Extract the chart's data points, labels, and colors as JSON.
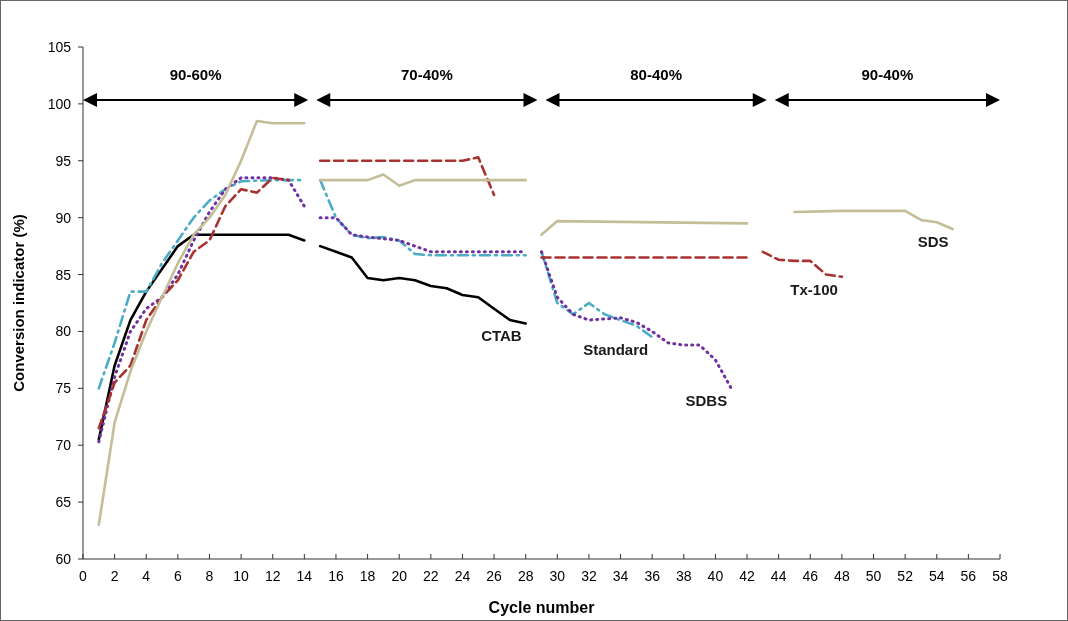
{
  "chart_data": {
    "type": "line",
    "xlabel": "Cycle number",
    "ylabel": "Conversion indicator  (%)",
    "xlim": [
      0,
      58
    ],
    "xticks": [
      0,
      2,
      4,
      6,
      8,
      10,
      12,
      14,
      16,
      18,
      20,
      22,
      24,
      26,
      28,
      30,
      32,
      34,
      36,
      38,
      40,
      42,
      44,
      46,
      48,
      50,
      52,
      54,
      56,
      58
    ],
    "ylim": [
      60,
      105
    ],
    "yticks": [
      60,
      65,
      70,
      75,
      80,
      85,
      90,
      95,
      100,
      105
    ],
    "annotations": [
      "90-60%",
      "70-40%",
      "80-40%",
      "90-40%"
    ],
    "series": [
      {
        "name": "CTAB",
        "color": "#000000",
        "line_style": "solid",
        "x": [
          1,
          2,
          3,
          4,
          5,
          6,
          7,
          8,
          10,
          12,
          13,
          14,
          14.5,
          15,
          16,
          17,
          18,
          19,
          20,
          21,
          22,
          23,
          24,
          25,
          26,
          27,
          28
        ],
        "values": [
          70.5,
          77,
          81,
          83.5,
          85.5,
          87.5,
          88.5,
          88.5,
          88.5,
          88.5,
          88.5,
          88,
          null,
          87.5,
          87,
          86.5,
          84.7,
          84.5,
          84.7,
          84.5,
          84,
          83.8,
          83.2,
          83,
          82,
          81,
          80.7
        ]
      },
      {
        "name": "Standard",
        "color": "#4bacc6",
        "line_style": "dashdot",
        "x": [
          1,
          2,
          3,
          4,
          5,
          6,
          7,
          8,
          9,
          10,
          12,
          14,
          14.5,
          15,
          16,
          17,
          18,
          19,
          20,
          21,
          22,
          28,
          28.5,
          29,
          30,
          31,
          32,
          33,
          34,
          35,
          36
        ],
        "values": [
          75,
          79,
          83.5,
          83.5,
          86,
          88,
          90,
          91.5,
          92.5,
          93.2,
          93.3,
          93.3,
          null,
          93.3,
          90,
          88.5,
          88.2,
          88.3,
          88,
          86.8,
          86.7,
          86.7,
          null,
          87,
          82.5,
          81.5,
          82.5,
          81.5,
          81,
          80.5,
          79.5
        ]
      },
      {
        "name": "SDBS",
        "color": "#7030a0",
        "line_style": "dotted",
        "x": [
          1,
          2,
          3,
          4,
          5,
          6,
          7,
          8,
          9,
          10,
          12,
          13,
          14,
          14.5,
          15,
          16,
          17,
          18,
          20,
          22,
          28,
          28.5,
          29,
          30,
          31,
          32,
          34,
          35,
          36,
          37,
          38,
          39,
          40,
          41
        ],
        "values": [
          70.3,
          76,
          80,
          82,
          83,
          85,
          88,
          90.5,
          92.5,
          93.5,
          93.5,
          93.3,
          91,
          null,
          90,
          90,
          88.5,
          88.3,
          88,
          87,
          87,
          null,
          87,
          83,
          81.5,
          81,
          81.2,
          80.8,
          80,
          79,
          78.8,
          78.8,
          77.5,
          75
        ]
      },
      {
        "name": "Tx-100",
        "color": "#a83232",
        "line_style": "dashed",
        "x": [
          1,
          2,
          3,
          4,
          5,
          6,
          7,
          8,
          9,
          10,
          11,
          12,
          13,
          14,
          15,
          20,
          24,
          25,
          26,
          27,
          29,
          42,
          42.5,
          43,
          44,
          45,
          46,
          47,
          48
        ],
        "values": [
          71.5,
          75.5,
          77,
          81,
          83,
          84.5,
          87,
          88,
          91,
          92.5,
          92.2,
          93.5,
          93.3,
          null,
          95,
          95,
          95,
          95.3,
          92,
          null,
          86.5,
          86.5,
          null,
          87,
          86.3,
          86.2,
          86.2,
          85,
          84.8
        ]
      },
      {
        "name": "SDS",
        "color": "#c4bd97",
        "line_style": "solid",
        "x": [
          1,
          2,
          3,
          4,
          5,
          6,
          7,
          8,
          9,
          10,
          11,
          12,
          14,
          14.5,
          15,
          18,
          19,
          20,
          21,
          28,
          28.5,
          29,
          30,
          42,
          43,
          45,
          48,
          52,
          53,
          54,
          55
        ],
        "values": [
          63,
          72,
          76.5,
          80,
          83,
          86,
          88.5,
          90,
          92,
          95,
          98.5,
          98.3,
          98.3,
          null,
          93.3,
          93.3,
          93.8,
          92.8,
          93.3,
          93.3,
          null,
          88.5,
          89.7,
          89.5,
          null,
          90.5,
          90.6,
          90.6,
          89.8,
          89.6,
          89
        ]
      }
    ]
  }
}
